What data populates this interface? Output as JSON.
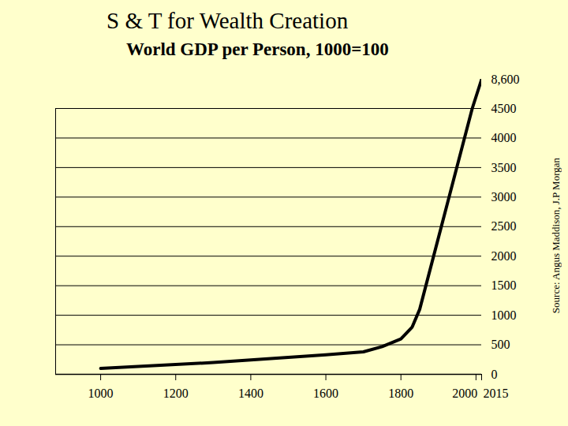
{
  "chart_data": {
    "type": "line",
    "title": "S & T for Wealth Creation",
    "subtitle": "World GDP per Person, 1000=100",
    "source": "Source: Angus Maddison, J.P Morgan",
    "x": [
      1000,
      1300,
      1600,
      1700,
      1750,
      1800,
      1830,
      1850,
      1990,
      2015
    ],
    "values": [
      100,
      200,
      330,
      380,
      470,
      600,
      800,
      1100,
      4500,
      8600
    ],
    "color": "#000000",
    "xlim": [
      880,
      2015
    ],
    "xticks": [
      1000,
      1200,
      1400,
      1600,
      1800,
      2000,
      2015
    ],
    "ylim": [
      0,
      8600
    ],
    "yticks": [
      0,
      500,
      1000,
      1500,
      2000,
      2500,
      3000,
      3500,
      4000,
      4500,
      {
        "value": 8600,
        "label": "8,600"
      }
    ],
    "grid": true
  }
}
